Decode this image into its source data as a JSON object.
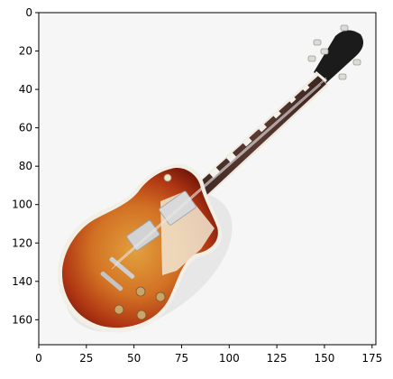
{
  "image": {
    "subject": "guitar-photo",
    "background_color": "#f6f6f6",
    "body_colors": {
      "sunburst_center": "#e3a03e",
      "sunburst_mid": "#c44a1b",
      "sunburst_edge": "#6e1308",
      "binding": "#f2efe6",
      "hardware": "#d9d9d9",
      "fretboard": "#4a2f2a",
      "headstock": "#1b1b1b",
      "knobs": "#c9a56a"
    },
    "x_axis": {
      "range": [
        0,
        177
      ],
      "ticks": [
        0,
        25,
        50,
        75,
        100,
        125,
        150,
        175
      ],
      "tick_labels": [
        "0",
        "25",
        "50",
        "75",
        "100",
        "125",
        "150",
        "175"
      ]
    },
    "y_axis": {
      "range": [
        0,
        173
      ],
      "ticks": [
        0,
        20,
        40,
        60,
        80,
        100,
        120,
        140,
        160
      ],
      "tick_labels": [
        "0",
        "20",
        "40",
        "60",
        "80",
        "100",
        "120",
        "140",
        "160"
      ]
    }
  }
}
